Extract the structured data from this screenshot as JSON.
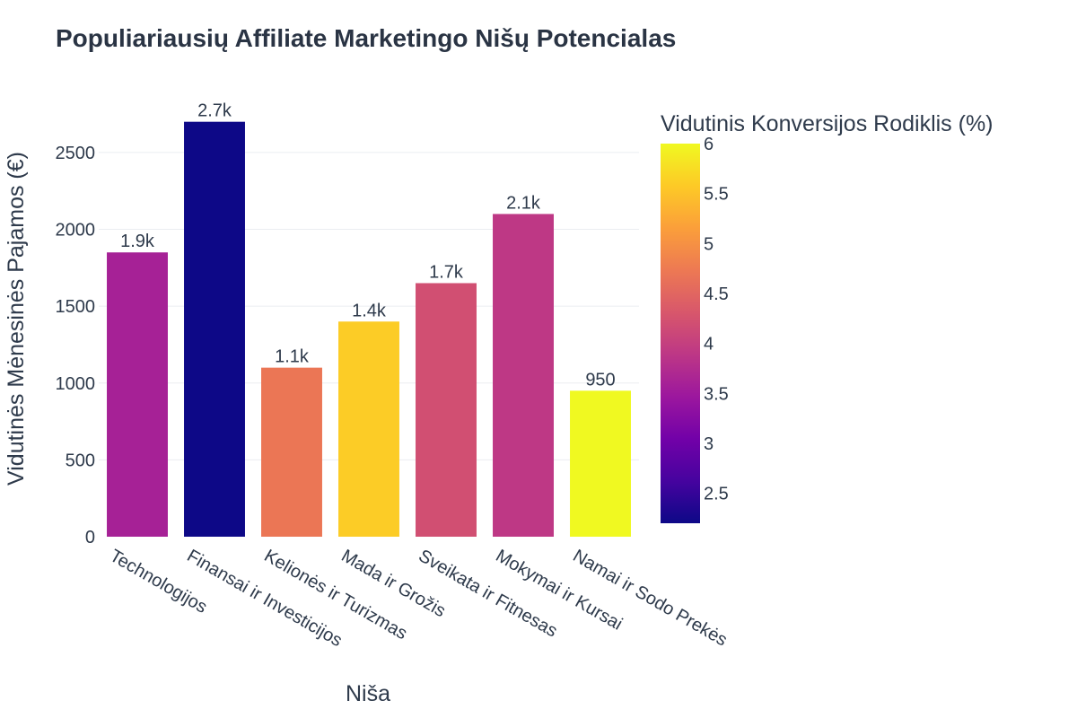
{
  "chart_data": {
    "type": "bar",
    "title": "Populiariausių Affiliate Marketingo Nišų Potencialas",
    "xlabel": "Niša",
    "ylabel": "Vidutinės Mėnesinės Pajamos (€)",
    "categories": [
      "Technologijos",
      "Finansai ir Investicijos",
      "Kelionės ir Turizmas",
      "Mada ir Grožis",
      "Sveikata ir Fitnesas",
      "Mokymai ir Kursai",
      "Namai ir Sodo Prekės"
    ],
    "values": [
      1850,
      2700,
      1100,
      1400,
      1650,
      2100,
      950
    ],
    "data_labels": [
      "1.9k",
      "2.7k",
      "1.1k",
      "1.4k",
      "1.7k",
      "2.1k",
      "950"
    ],
    "color_values": [
      3.6,
      2.2,
      4.7,
      5.6,
      4.2,
      3.9,
      6.0
    ],
    "ylim": [
      0,
      2850
    ],
    "yticks": [
      0,
      500,
      1000,
      1500,
      2000,
      2500
    ],
    "grid": true,
    "colorbar": {
      "title": "Vidutinis Konversijos Rodiklis (%)",
      "range": [
        2.2,
        6.0
      ],
      "ticks": [
        2.5,
        3,
        3.5,
        4,
        4.5,
        5,
        5.5,
        6
      ],
      "colorscale": [
        "#0d0887",
        "#46039f",
        "#7201a8",
        "#9c179e",
        "#bd3786",
        "#d8576b",
        "#ed7953",
        "#fb9f3a",
        "#fdca26",
        "#f0f921"
      ]
    }
  }
}
